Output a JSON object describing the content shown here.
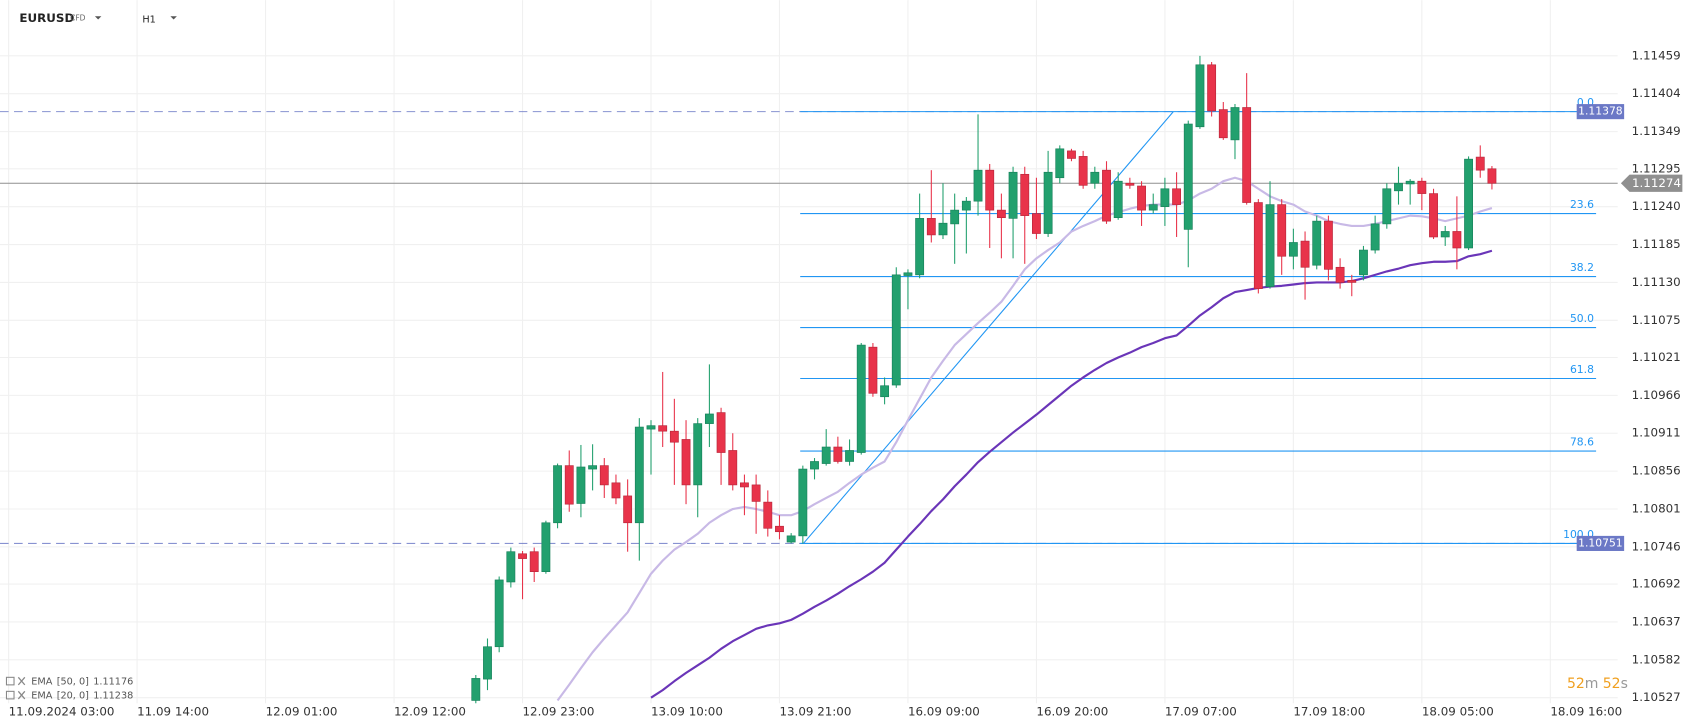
{
  "chart_data": {
    "type": "candlestick",
    "symbol": "EURUSD",
    "instrument": "CFD",
    "timeframe": "H1",
    "categories": [
      "11.09.2024 03:00",
      null,
      null,
      null,
      null,
      null,
      null,
      null,
      null,
      null,
      null,
      "11.09 14:00",
      null,
      null,
      null,
      null,
      null,
      null,
      null,
      null,
      null,
      null,
      "12.09 01:00",
      null,
      null,
      null,
      null,
      null,
      null,
      null,
      null,
      null,
      null,
      "12.09 12:00",
      null,
      null,
      null,
      null,
      null,
      null,
      null,
      null,
      null,
      null,
      "12.09 23:00",
      null,
      null,
      null,
      null,
      null,
      null,
      null,
      null,
      null,
      null,
      "13.09 10:00",
      null,
      null,
      null,
      null,
      null,
      null,
      null,
      null,
      null,
      null,
      "13.09 21:00",
      null,
      null,
      null,
      null,
      null,
      null,
      null,
      null,
      null,
      null,
      "16.09 09:00",
      null,
      null,
      null,
      null,
      null,
      null,
      null,
      null,
      null,
      null,
      "16.09 20:00",
      null,
      null,
      null,
      null,
      null,
      null,
      null,
      null,
      null,
      null,
      "17.09 07:00",
      null,
      null,
      null,
      null,
      null,
      null,
      null,
      null,
      null,
      null,
      "17.09 18:00",
      null,
      null,
      null,
      null,
      null,
      null,
      null,
      null,
      null,
      null,
      "18.09 05:00",
      null,
      null,
      null,
      null,
      null,
      null,
      null,
      null,
      null,
      null,
      "18.09 16:00"
    ],
    "open": [
      null,
      null,
      null,
      null,
      null,
      null,
      null,
      null,
      null,
      null,
      null,
      null,
      null,
      null,
      null,
      null,
      null,
      null,
      null,
      null,
      null,
      null,
      null,
      null,
      null,
      null,
      null,
      null,
      null,
      null,
      null,
      null,
      null,
      null,
      null,
      null,
      null,
      null,
      null,
      null,
      1.10523,
      1.10554,
      1.10601,
      1.10695,
      1.10736,
      1.10739,
      1.1071,
      1.10781,
      1.10864,
      1.10809,
      1.10859,
      1.10864,
      1.10839,
      1.1082,
      1.10781,
      1.10917,
      1.10922,
      1.10914,
      1.10902,
      1.10836,
      1.10925,
      1.10941,
      1.10886,
      1.10839,
      1.10836,
      1.10811,
      1.10776,
      1.10753,
      1.10762,
      1.10859,
      1.10867,
      1.10891,
      1.1087,
      1.10883,
      1.11036,
      1.10964,
      1.10981,
      1.1114,
      1.11141,
      1.11223,
      1.11199,
      1.11215,
      1.11235,
      1.11248,
      1.11293,
      1.11235,
      1.11223,
      1.11287,
      1.1123,
      1.11201,
      1.11282,
      1.11321,
      1.11313,
      1.11274,
      1.11293,
      1.11224,
      1.11274,
      1.1127,
      1.11235,
      1.1124,
      1.11266,
      1.11207,
      1.11356,
      1.11446,
      1.11381,
      1.11337,
      1.11384,
      1.11246,
      1.11124,
      1.11243,
      1.11168,
      1.1119,
      1.11155,
      1.11219,
      1.11152,
      1.11133,
      1.11141,
      1.11177,
      1.11215,
      1.11263,
      1.11273,
      1.11277,
      1.11259,
      1.11196,
      1.11204,
      1.1118,
      1.11312,
      1.11295,
      null,
      null,
      null,
      null,
      null
    ],
    "high": [
      null,
      null,
      null,
      null,
      null,
      null,
      null,
      null,
      null,
      null,
      null,
      null,
      null,
      null,
      null,
      null,
      null,
      null,
      null,
      null,
      null,
      null,
      null,
      null,
      null,
      null,
      null,
      null,
      null,
      null,
      null,
      null,
      null,
      null,
      null,
      null,
      null,
      null,
      null,
      null,
      1.1056,
      1.10613,
      1.10703,
      1.10745,
      1.1074,
      1.10745,
      1.10784,
      1.10867,
      1.10886,
      1.10894,
      1.10895,
      1.10875,
      1.10851,
      1.10844,
      1.10933,
      1.1093,
      1.11,
      1.10961,
      1.1093,
      1.10933,
      1.11011,
      1.10948,
      1.10911,
      1.10851,
      1.10851,
      1.10828,
      1.10792,
      1.10766,
      1.10864,
      1.10875,
      1.10917,
      1.10906,
      1.10902,
      1.11042,
      1.11042,
      1.10992,
      1.11152,
      1.11149,
      1.11259,
      1.11293,
      1.11274,
      1.11259,
      1.11254,
      1.11374,
      1.11302,
      1.11259,
      1.11298,
      1.11298,
      1.11282,
      1.11321,
      1.11329,
      1.11324,
      1.11321,
      1.11298,
      1.11306,
      1.1129,
      1.11282,
      1.11277,
      1.11259,
      1.11282,
      1.1129,
      1.11365,
      1.11459,
      1.1145,
      1.11392,
      1.11389,
      1.11434,
      1.11251,
      1.11277,
      1.11251,
      1.11208,
      1.11204,
      1.11227,
      1.11227,
      1.11165,
      1.11141,
      1.11183,
      1.11227,
      1.11274,
      1.11298,
      1.1128,
      1.11282,
      1.11266,
      1.11212,
      1.11255,
      1.11313,
      1.11329,
      1.11299,
      null,
      null,
      null,
      null,
      null
    ],
    "low": [
      null,
      null,
      null,
      null,
      null,
      null,
      null,
      null,
      null,
      null,
      null,
      null,
      null,
      null,
      null,
      null,
      null,
      null,
      null,
      null,
      null,
      null,
      null,
      null,
      null,
      null,
      null,
      null,
      null,
      null,
      null,
      null,
      null,
      null,
      null,
      null,
      null,
      null,
      null,
      null,
      1.10515,
      1.10538,
      1.10593,
      1.10687,
      1.1067,
      1.10695,
      1.10707,
      1.10773,
      1.10797,
      1.10789,
      1.10828,
      1.10817,
      1.10808,
      1.10739,
      1.10726,
      1.10851,
      1.10891,
      1.10836,
      1.10808,
      1.10789,
      1.10891,
      1.10836,
      1.10828,
      1.10792,
      1.10765,
      1.10761,
      1.10757,
      1.10751,
      1.10751,
      1.10844,
      1.10864,
      1.10867,
      1.10864,
      1.1088,
      1.10964,
      1.10953,
      1.10977,
      1.11091,
      1.11136,
      1.11188,
      1.11193,
      1.11157,
      1.11172,
      1.11227,
      1.1118,
      1.11165,
      1.11165,
      1.11157,
      1.11193,
      1.11196,
      1.11274,
      1.11306,
      1.11266,
      1.11266,
      1.11215,
      1.11221,
      1.11266,
      1.11212,
      1.1123,
      1.11212,
      1.11196,
      1.11152,
      1.11353,
      1.11371,
      1.11337,
      1.11309,
      1.11243,
      1.11114,
      1.11121,
      1.11141,
      1.11149,
      1.11105,
      1.11149,
      1.11133,
      1.11121,
      1.1111,
      1.11133,
      1.11172,
      1.11208,
      1.11243,
      1.11243,
      1.11235,
      1.11193,
      1.11183,
      1.11149,
      1.11177,
      1.11282,
      1.11265,
      null,
      null,
      null,
      null,
      null
    ],
    "close": [
      null,
      null,
      null,
      null,
      null,
      null,
      null,
      null,
      null,
      null,
      null,
      null,
      null,
      null,
      null,
      null,
      null,
      null,
      null,
      null,
      null,
      null,
      null,
      null,
      null,
      null,
      null,
      null,
      null,
      null,
      null,
      null,
      null,
      null,
      null,
      null,
      null,
      null,
      null,
      null,
      1.10555,
      1.10601,
      1.10698,
      1.10739,
      1.10729,
      1.1071,
      1.10781,
      1.10864,
      1.10808,
      1.10862,
      1.10864,
      1.10836,
      1.10817,
      1.10781,
      1.1092,
      1.10922,
      1.10914,
      1.10898,
      1.10836,
      1.10925,
      1.10939,
      1.10883,
      1.10836,
      1.10833,
      1.10812,
      1.10773,
      1.10768,
      1.10762,
      1.10859,
      1.1087,
      1.10891,
      1.1087,
      1.10886,
      1.11039,
      1.10969,
      1.1098,
      1.11141,
      1.11144,
      1.11223,
      1.11199,
      1.11216,
      1.11235,
      1.11248,
      1.11293,
      1.11235,
      1.11224,
      1.1129,
      1.11227,
      1.11201,
      1.1129,
      1.11324,
      1.1131,
      1.11271,
      1.1129,
      1.11219,
      1.11277,
      1.11271,
      1.11235,
      1.11243,
      1.11266,
      1.11243,
      1.1136,
      1.11446,
      1.11379,
      1.1134,
      1.11384,
      1.11246,
      1.11121,
      1.11243,
      1.11168,
      1.11188,
      1.11152,
      1.11219,
      1.11149,
      1.1113,
      1.1113,
      1.11177,
      1.11215,
      1.11266,
      1.11274,
      1.11277,
      1.11259,
      1.11196,
      1.11204,
      1.1118,
      1.11309,
      1.11293,
      1.11274,
      null,
      null,
      null,
      null,
      null
    ],
    "up_color": "#22a06e",
    "down_color": "#e8334a",
    "indicators": [
      {
        "name": "EMA",
        "params": "[50, 0]",
        "value": 1.11176,
        "color": "#6a35b8",
        "values": [
          null,
          null,
          null,
          null,
          null,
          null,
          null,
          null,
          null,
          null,
          null,
          null,
          null,
          null,
          null,
          null,
          null,
          null,
          null,
          null,
          null,
          null,
          null,
          null,
          null,
          null,
          null,
          null,
          null,
          null,
          null,
          null,
          null,
          null,
          null,
          null,
          null,
          null,
          null,
          null,
          null,
          null,
          null,
          null,
          null,
          null,
          null,
          null,
          null,
          null,
          null,
          null,
          null,
          null,
          null,
          1.10527,
          1.10538,
          1.10551,
          1.10563,
          1.10574,
          1.10585,
          1.10598,
          1.10609,
          1.10618,
          1.10627,
          1.10632,
          1.10635,
          1.1064,
          1.10649,
          1.10659,
          1.10668,
          1.10678,
          1.10689,
          1.10699,
          1.1071,
          1.10723,
          1.10742,
          1.10761,
          1.10779,
          1.10798,
          1.10815,
          1.10834,
          1.10851,
          1.10869,
          1.10884,
          1.10898,
          1.10912,
          1.10925,
          1.10938,
          1.10952,
          1.10966,
          1.1098,
          1.10992,
          1.11003,
          1.11013,
          1.11021,
          1.11028,
          1.11036,
          1.11042,
          1.11049,
          1.11053,
          1.11067,
          1.11082,
          1.11094,
          1.11107,
          1.11116,
          1.11119,
          1.11122,
          1.11124,
          1.11125,
          1.11127,
          1.11129,
          1.1113,
          1.1113,
          1.1113,
          1.11132,
          1.11136,
          1.11141,
          1.11146,
          1.1115,
          1.11155,
          1.11158,
          1.1116,
          1.1116,
          1.11161,
          1.11168,
          1.11171,
          1.11176,
          null,
          null,
          null,
          null,
          null
        ]
      },
      {
        "name": "EMA",
        "params": "[20, 0]",
        "value": 1.11238,
        "color": "#c8b9e6",
        "values": [
          null,
          null,
          null,
          null,
          null,
          null,
          null,
          null,
          null,
          null,
          null,
          null,
          null,
          null,
          null,
          null,
          null,
          null,
          null,
          null,
          null,
          null,
          null,
          null,
          null,
          null,
          null,
          null,
          null,
          null,
          null,
          null,
          null,
          null,
          null,
          null,
          null,
          null,
          null,
          null,
          null,
          null,
          null,
          null,
          null,
          null,
          null,
          1.10523,
          1.10546,
          1.1057,
          1.10593,
          1.10613,
          1.10632,
          1.10651,
          1.10679,
          1.10707,
          1.10726,
          1.10742,
          1.10753,
          1.10765,
          1.10781,
          1.10792,
          1.10801,
          1.10804,
          1.10801,
          1.10797,
          1.10792,
          1.10792,
          1.10798,
          1.10808,
          1.10817,
          1.10826,
          1.10839,
          1.10851,
          1.10861,
          1.1087,
          1.10898,
          1.1093,
          1.10961,
          1.10992,
          1.11016,
          1.11039,
          1.11055,
          1.11071,
          1.11086,
          1.11102,
          1.11125,
          1.11149,
          1.11165,
          1.11177,
          1.11188,
          1.11204,
          1.11212,
          1.11219,
          1.11227,
          1.11232,
          1.11237,
          1.11241,
          1.11243,
          1.11243,
          1.11243,
          1.11249,
          1.11259,
          1.11266,
          1.11277,
          1.11282,
          1.11277,
          1.11266,
          1.11255,
          1.11248,
          1.11243,
          1.11233,
          1.11227,
          1.11219,
          1.11215,
          1.11212,
          1.11212,
          1.11215,
          1.11219,
          1.11223,
          1.11227,
          1.11226,
          1.11223,
          1.11219,
          1.11223,
          1.11227,
          1.11233,
          1.11238,
          null,
          null,
          null,
          null,
          null
        ]
      }
    ],
    "fib": {
      "high": 1.11378,
      "low": 1.10751,
      "color": "#2196f3",
      "badge_color": "#6b78c6",
      "levels": [
        {
          "value": 0,
          "label": "0.0"
        },
        23.6,
        38.2,
        {
          "value": 50,
          "label": "50.0"
        },
        61.8,
        78.6,
        {
          "value": 100,
          "label": "100.0"
        }
      ]
    },
    "last_price": 1.11274,
    "last_price_color": "#8f8f8f",
    "ylim": [
      1.10519,
      1.1154
    ],
    "yticks": [
      1.11459,
      1.11404,
      1.11349,
      1.11295,
      {
        "value": 1.1124,
        "label": "1.11240"
      },
      1.11185,
      {
        "value": 1.1113,
        "label": "1.11130"
      },
      1.11075,
      1.11021,
      1.10966,
      1.10911,
      1.10856,
      1.10801,
      1.10746,
      1.10692,
      1.10637,
      1.10582,
      1.10527
    ],
    "grid": true,
    "countdown": {
      "minutes": 52,
      "minutes_unit": "m",
      "seconds": 52,
      "seconds_unit": "s"
    }
  }
}
